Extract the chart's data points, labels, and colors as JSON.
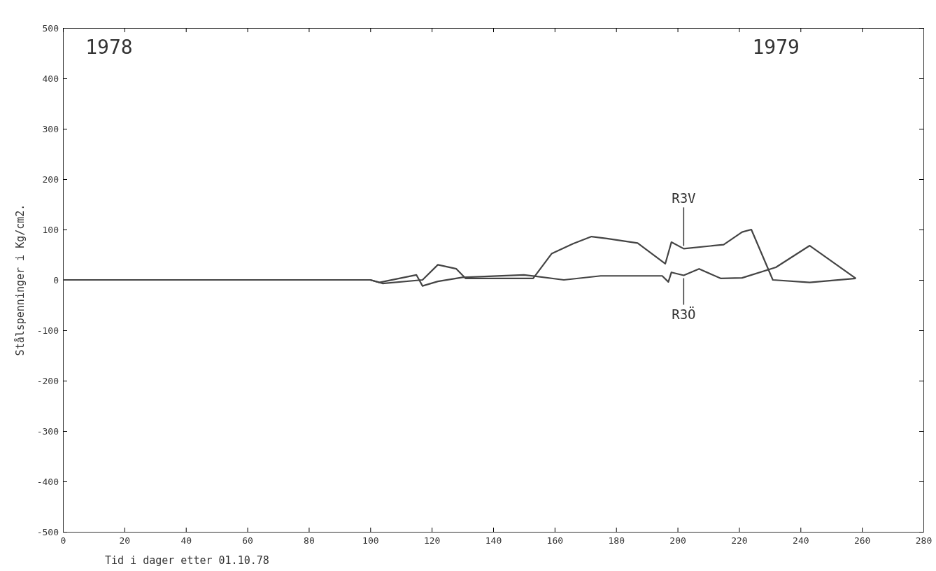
{
  "chart_data": {
    "type": "line",
    "xlabel": "Tid i dager etter 01.10.78",
    "ylabel": "Stålspenninger i Kg/cm2.",
    "xlim": [
      0,
      280
    ],
    "xticks": [
      0,
      20,
      40,
      60,
      80,
      100,
      120,
      140,
      160,
      180,
      200,
      220,
      240,
      260,
      280
    ],
    "ylim": [
      -500,
      500
    ],
    "yticks": [
      -500,
      -400,
      -300,
      -200,
      -100,
      0,
      100,
      200,
      300,
      400,
      500
    ],
    "grid": false,
    "marker": "none",
    "line_style": "solid",
    "annotations": [
      "1978",
      "1979"
    ],
    "series": [
      {
        "name": "R3V",
        "color": "#444444",
        "x": [
          0,
          100,
          104,
          117,
          122,
          128,
          131,
          153,
          159,
          166,
          172,
          177,
          187,
          196,
          198,
          202,
          215,
          221,
          224,
          231,
          243,
          258
        ],
        "values": [
          0,
          0,
          -7,
          0,
          30,
          22,
          3,
          3,
          52,
          72,
          86,
          82,
          73,
          32,
          75,
          62,
          70,
          95,
          100,
          0,
          -5,
          3
        ]
      },
      {
        "name": "R3Ö",
        "color": "#444444",
        "x": [
          0,
          100,
          103,
          115,
          117,
          122,
          130,
          150,
          163,
          175,
          195,
          197,
          198,
          202,
          207,
          214,
          221,
          232,
          243,
          258
        ],
        "values": [
          0,
          0,
          -5,
          10,
          -12,
          -3,
          5,
          10,
          0,
          8,
          8,
          -4,
          15,
          9,
          22,
          3,
          4,
          25,
          68,
          3
        ]
      }
    ]
  }
}
